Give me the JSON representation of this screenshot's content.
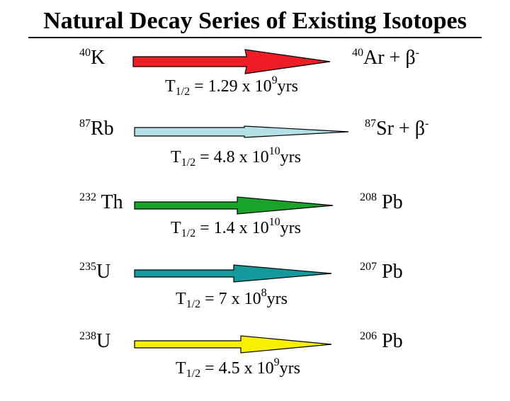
{
  "title": "Natural Decay Series of Existing Isotopes",
  "decays": [
    {
      "parent_mass": "40",
      "parent_symbol": "K",
      "daughter_mass": "40",
      "daughter_symbol": "Ar",
      "plus": "+",
      "particle": "β",
      "particle_charge": "-",
      "half_life_label": "T",
      "half_life_sub": "1/2",
      "half_life_value": "= 1.29 x 10",
      "half_life_exp": "9",
      "half_life_unit": "yrs",
      "arrow_color": "#ee1c24"
    },
    {
      "parent_mass": "87",
      "parent_symbol": "Rb",
      "daughter_mass": "87",
      "daughter_symbol": "Sr",
      "plus": "+",
      "particle": "β",
      "particle_charge": "-",
      "half_life_label": "T",
      "half_life_sub": "1/2",
      "half_life_value": "= 4.8 x 10",
      "half_life_exp": "10",
      "half_life_unit": "yrs",
      "arrow_color": "#b3dfe6"
    },
    {
      "parent_mass": "232",
      "parent_symbol": "Th",
      "daughter_mass": "208",
      "daughter_symbol": "Pb",
      "plus": "",
      "particle": "",
      "particle_charge": "",
      "half_life_label": "T",
      "half_life_sub": "1/2",
      "half_life_value": "= 1.4 x 10",
      "half_life_exp": "10",
      "half_life_unit": "yrs",
      "arrow_color": "#1aa32b"
    },
    {
      "parent_mass": "235",
      "parent_symbol": "U",
      "daughter_mass": "207",
      "daughter_symbol": "Pb",
      "plus": "",
      "particle": "",
      "particle_charge": "",
      "half_life_label": "T",
      "half_life_sub": "1/2",
      "half_life_value": "= 7 x 10",
      "half_life_exp": "8",
      "half_life_unit": "yrs",
      "arrow_color": "#149a9c"
    },
    {
      "parent_mass": "238",
      "parent_symbol": "U",
      "daughter_mass": "206",
      "daughter_symbol": "Pb",
      "plus": "",
      "particle": "",
      "particle_charge": "",
      "half_life_label": "T",
      "half_life_sub": "1/2",
      "half_life_value": "= 4.5 x 10",
      "half_life_exp": "9",
      "half_life_unit": "yrs",
      "arrow_color": "#f7f000"
    }
  ]
}
